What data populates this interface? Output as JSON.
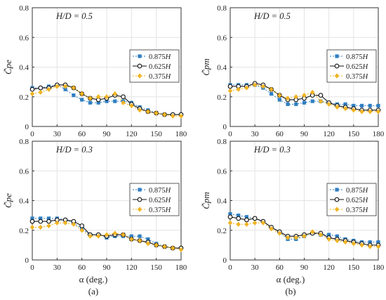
{
  "figure": {
    "xlabel_main": "α (deg.)",
    "sublabels": [
      "(a)",
      "(b)"
    ]
  },
  "chart_data": [
    {
      "type": "line",
      "panel": "top-left",
      "annotation": "H/D = 0.5",
      "ylabel": "C̃pe",
      "xlim": [
        0,
        180
      ],
      "ylim": [
        0,
        0.8
      ],
      "xticks": [
        0,
        30,
        60,
        90,
        120,
        150,
        180
      ],
      "yticks": [
        0,
        0.2,
        0.4,
        0.6,
        0.8
      ],
      "grid": true,
      "legend_position": "right",
      "x": [
        0,
        10,
        20,
        30,
        40,
        50,
        60,
        70,
        80,
        90,
        100,
        110,
        120,
        130,
        140,
        150,
        160,
        170,
        180
      ],
      "series": [
        {
          "name": "0.875H",
          "color": "#2e7fc2",
          "marker": "square",
          "dash": "2,2",
          "values": [
            0.26,
            0.26,
            0.27,
            0.28,
            0.25,
            0.21,
            0.18,
            0.16,
            0.16,
            0.17,
            0.17,
            0.17,
            0.16,
            0.13,
            0.11,
            0.09,
            0.08,
            0.08,
            0.08
          ]
        },
        {
          "name": "0.625H",
          "color": "#111111",
          "marker": "circle",
          "dash": "",
          "values": [
            0.25,
            0.26,
            0.26,
            0.28,
            0.28,
            0.26,
            0.22,
            0.19,
            0.18,
            0.19,
            0.21,
            0.2,
            0.15,
            0.12,
            0.1,
            0.09,
            0.08,
            0.08,
            0.08
          ]
        },
        {
          "name": "0.375H",
          "color": "#f0b323",
          "marker": "diamond",
          "dash": "2,2",
          "values": [
            0.22,
            0.23,
            0.25,
            0.27,
            0.27,
            0.26,
            0.22,
            0.19,
            0.2,
            0.2,
            0.22,
            0.16,
            0.14,
            0.11,
            0.1,
            0.09,
            0.08,
            0.07,
            0.07
          ]
        }
      ]
    },
    {
      "type": "line",
      "panel": "top-right",
      "annotation": "H/D = 0.5",
      "ylabel": "C̃pm",
      "xlim": [
        0,
        180
      ],
      "ylim": [
        0,
        0.8
      ],
      "xticks": [
        0,
        30,
        60,
        90,
        120,
        150,
        180
      ],
      "yticks": [
        0,
        0.2,
        0.4,
        0.6,
        0.8
      ],
      "grid": true,
      "legend_position": "right",
      "x": [
        0,
        10,
        20,
        30,
        40,
        50,
        60,
        70,
        80,
        90,
        100,
        110,
        120,
        130,
        140,
        150,
        160,
        170,
        180
      ],
      "series": [
        {
          "name": "0.875H",
          "color": "#2e7fc2",
          "marker": "square",
          "dash": "2,2",
          "values": [
            0.28,
            0.28,
            0.28,
            0.28,
            0.26,
            0.22,
            0.18,
            0.15,
            0.15,
            0.16,
            0.17,
            0.17,
            0.16,
            0.15,
            0.15,
            0.14,
            0.14,
            0.14,
            0.14
          ]
        },
        {
          "name": "0.625H",
          "color": "#111111",
          "marker": "circle",
          "dash": "",
          "values": [
            0.27,
            0.27,
            0.27,
            0.29,
            0.28,
            0.25,
            0.21,
            0.18,
            0.18,
            0.19,
            0.21,
            0.21,
            0.16,
            0.14,
            0.13,
            0.12,
            0.11,
            0.11,
            0.11
          ]
        },
        {
          "name": "0.375H",
          "color": "#f0b323",
          "marker": "diamond",
          "dash": "2,2",
          "values": [
            0.24,
            0.25,
            0.26,
            0.28,
            0.27,
            0.25,
            0.21,
            0.19,
            0.2,
            0.21,
            0.23,
            0.17,
            0.15,
            0.13,
            0.12,
            0.11,
            0.1,
            0.1,
            0.1
          ]
        }
      ]
    },
    {
      "type": "line",
      "panel": "bottom-left",
      "annotation": "H/D = 0.3",
      "ylabel": "C̃pe",
      "xlim": [
        0,
        180
      ],
      "ylim": [
        0,
        0.8
      ],
      "xticks": [
        0,
        30,
        60,
        90,
        120,
        150,
        180
      ],
      "yticks": [
        0,
        0.2,
        0.4,
        0.6,
        0.8
      ],
      "grid": true,
      "legend_position": "right",
      "x": [
        0,
        10,
        20,
        30,
        40,
        50,
        60,
        70,
        80,
        90,
        100,
        110,
        120,
        130,
        140,
        150,
        160,
        170,
        180
      ],
      "series": [
        {
          "name": "0.875H",
          "color": "#2e7fc2",
          "marker": "square",
          "dash": "2,2",
          "values": [
            0.28,
            0.28,
            0.28,
            0.28,
            0.27,
            0.25,
            0.21,
            0.17,
            0.17,
            0.15,
            0.16,
            0.16,
            0.16,
            0.16,
            0.14,
            0.11,
            0.09,
            0.08,
            0.08
          ]
        },
        {
          "name": "0.625H",
          "color": "#111111",
          "marker": "circle",
          "dash": "",
          "values": [
            0.26,
            0.26,
            0.26,
            0.27,
            0.27,
            0.26,
            0.23,
            0.17,
            0.17,
            0.16,
            0.17,
            0.17,
            0.14,
            0.13,
            0.12,
            0.1,
            0.09,
            0.08,
            0.08
          ]
        },
        {
          "name": "0.375H",
          "color": "#f0b323",
          "marker": "diamond",
          "dash": "2,2",
          "values": [
            0.22,
            0.22,
            0.23,
            0.25,
            0.25,
            0.24,
            0.2,
            0.16,
            0.16,
            0.17,
            0.18,
            0.17,
            0.14,
            0.13,
            0.11,
            0.1,
            0.09,
            0.08,
            0.07
          ]
        }
      ]
    },
    {
      "type": "line",
      "panel": "bottom-right",
      "annotation": "H/D = 0.3",
      "ylabel": "C̃pm",
      "xlim": [
        0,
        180
      ],
      "ylim": [
        0,
        0.8
      ],
      "xticks": [
        0,
        30,
        60,
        90,
        120,
        150,
        180
      ],
      "yticks": [
        0,
        0.2,
        0.4,
        0.6,
        0.8
      ],
      "grid": true,
      "legend_position": "right",
      "x": [
        0,
        10,
        20,
        30,
        40,
        50,
        60,
        70,
        80,
        90,
        100,
        110,
        120,
        130,
        140,
        150,
        160,
        170,
        180
      ],
      "series": [
        {
          "name": "0.875H",
          "color": "#2e7fc2",
          "marker": "square",
          "dash": "2,2",
          "values": [
            0.31,
            0.3,
            0.29,
            0.28,
            0.26,
            0.22,
            0.19,
            0.14,
            0.14,
            0.16,
            0.18,
            0.17,
            0.17,
            0.16,
            0.14,
            0.13,
            0.12,
            0.12,
            0.12
          ]
        },
        {
          "name": "0.625H",
          "color": "#111111",
          "marker": "circle",
          "dash": "",
          "values": [
            0.29,
            0.28,
            0.27,
            0.28,
            0.26,
            0.22,
            0.19,
            0.16,
            0.16,
            0.17,
            0.18,
            0.18,
            0.15,
            0.14,
            0.13,
            0.12,
            0.11,
            0.1,
            0.1
          ]
        },
        {
          "name": "0.375H",
          "color": "#f0b323",
          "marker": "diamond",
          "dash": "2,2",
          "values": [
            0.25,
            0.24,
            0.24,
            0.25,
            0.25,
            0.21,
            0.18,
            0.15,
            0.15,
            0.16,
            0.19,
            0.17,
            0.14,
            0.13,
            0.12,
            0.11,
            0.1,
            0.09,
            0.09
          ]
        }
      ]
    }
  ]
}
